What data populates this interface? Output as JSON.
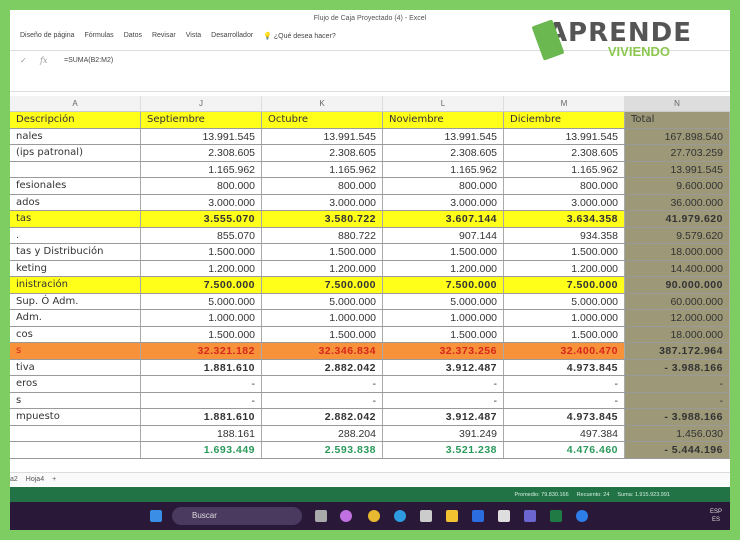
{
  "window": {
    "title": "Flujo de Caja Proyectado (4) - Excel"
  },
  "ribbon": [
    "Diseño de página",
    "Fórmulas",
    "Datos",
    "Revisar",
    "Vista",
    "Desarrollador",
    "¿Qué desea hacer?"
  ],
  "formula_bar": {
    "value": "=SUMA(B2:M2)",
    "cancel": "✓",
    "fx": "fx"
  },
  "logo": {
    "line1": "APRENDE",
    "line2": "VIVIENDO"
  },
  "columns": [
    "A",
    "J",
    "K",
    "L",
    "M",
    "N"
  ],
  "rows": [
    {
      "style": "hdrrow",
      "cells": [
        "Descripción",
        "Septiembre",
        "Octubre",
        "Noviembre",
        "Diciembre",
        "Total"
      ]
    },
    {
      "style": "",
      "cells": [
        "nales",
        "13.991.545",
        "13.991.545",
        "13.991.545",
        "13.991.545",
        "167.898.540"
      ]
    },
    {
      "style": "",
      "cells": [
        "(ips patronal)",
        "2.308.605",
        "2.308.605",
        "2.308.605",
        "2.308.605",
        "27.703.259"
      ]
    },
    {
      "style": "",
      "cells": [
        "",
        "1.165.962",
        "1.165.962",
        "1.165.962",
        "1.165.962",
        "13.991.545"
      ]
    },
    {
      "style": "",
      "cells": [
        "fesionales",
        "800.000",
        "800.000",
        "800.000",
        "800.000",
        "9.600.000"
      ]
    },
    {
      "style": "",
      "cells": [
        "ados",
        "3.000.000",
        "3.000.000",
        "3.000.000",
        "3.000.000",
        "36.000.000"
      ]
    },
    {
      "style": "yellow bold",
      "cells": [
        "tas",
        "3.555.070",
        "3.580.722",
        "3.607.144",
        "3.634.358",
        "41.979.620"
      ]
    },
    {
      "style": "",
      "cells": [
        ".",
        "855.070",
        "880.722",
        "907.144",
        "934.358",
        "9.579.620"
      ]
    },
    {
      "style": "",
      "cells": [
        "tas y Distribución",
        "1.500.000",
        "1.500.000",
        "1.500.000",
        "1.500.000",
        "18.000.000"
      ]
    },
    {
      "style": "",
      "cells": [
        "keting",
        "1.200.000",
        "1.200.000",
        "1.200.000",
        "1.200.000",
        "14.400.000"
      ]
    },
    {
      "style": "yellow bold",
      "cells": [
        "inistración",
        "7.500.000",
        "7.500.000",
        "7.500.000",
        "7.500.000",
        "90.000.000"
      ]
    },
    {
      "style": "",
      "cells": [
        "Sup. Ó Adm.",
        "5.000.000",
        "5.000.000",
        "5.000.000",
        "5.000.000",
        "60.000.000"
      ]
    },
    {
      "style": "",
      "cells": [
        "Adm.",
        "1.000.000",
        "1.000.000",
        "1.000.000",
        "1.000.000",
        "12.000.000"
      ]
    },
    {
      "style": "",
      "cells": [
        "cos",
        "1.500.000",
        "1.500.000",
        "1.500.000",
        "1.500.000",
        "18.000.000"
      ]
    },
    {
      "style": "orange bold",
      "cells": [
        "s",
        "32.321.182",
        "32.346.834",
        "32.373.256",
        "32.400.470",
        "387.172.964"
      ]
    },
    {
      "style": "bold",
      "cells": [
        "tiva",
        "1.881.610",
        "2.882.042",
        "3.912.487",
        "4.973.845",
        "-       3.988.166"
      ]
    },
    {
      "style": "",
      "cells": [
        "eros",
        "-",
        "-",
        "-",
        "-",
        "-"
      ]
    },
    {
      "style": "",
      "cells": [
        "s",
        "-",
        "-",
        "-",
        "-",
        "-"
      ]
    },
    {
      "style": "bold",
      "cells": [
        "mpuesto",
        "1.881.610",
        "2.882.042",
        "3.912.487",
        "4.973.845",
        "-       3.988.166"
      ]
    },
    {
      "style": "",
      "cells": [
        "",
        "188.161",
        "288.204",
        "391.249",
        "497.384",
        "1.456.030"
      ]
    },
    {
      "style": "green bold",
      "cells": [
        "",
        "1.693.449",
        "2.593.838",
        "3.521.238",
        "4.476.460",
        "-       5.444.196"
      ]
    }
  ],
  "sheet_tabs": [
    "a2",
    "Hoja4",
    "+"
  ],
  "status": {
    "average": "Promedio: 79.830.166",
    "count": "Recuento: 24",
    "sum": "Suma: 1.915.923.991"
  },
  "taskbar": {
    "search": "Buscar",
    "lang": "ESP",
    "region": "ES"
  }
}
